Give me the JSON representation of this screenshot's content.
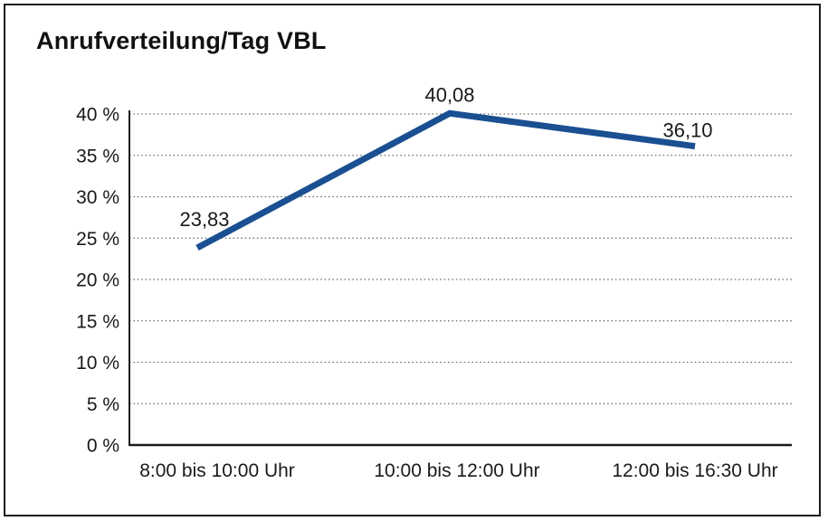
{
  "colors": {
    "line": "#1a4f91",
    "text": "#1a1a1a",
    "grid": "#6e6e6e",
    "axis": "#1a1a1a",
    "frame": "#1a1a1a",
    "background": "#ffffff"
  },
  "chart_data": {
    "type": "line",
    "title": "Anrufverteilung/Tag VBL",
    "categories": [
      "8:00 bis 10:00 Uhr",
      "10:00 bis 12:00 Uhr",
      "12:00 bis 16:30 Uhr"
    ],
    "series": [
      {
        "values": [
          23.83,
          40.08,
          36.1
        ],
        "value_labels": [
          "23,83",
          "40,08",
          "36,10"
        ]
      }
    ],
    "xlabel": "",
    "ylabel": "",
    "ylim": [
      0,
      40
    ],
    "ytick_step": 5,
    "ytick_labels": [
      "0 %",
      "5 %",
      "10 %",
      "15 %",
      "20 %",
      "25 %",
      "30 %",
      "35 %",
      "40 %"
    ],
    "grid": "horizontal-dotted",
    "legend": "none",
    "markers": "none"
  }
}
